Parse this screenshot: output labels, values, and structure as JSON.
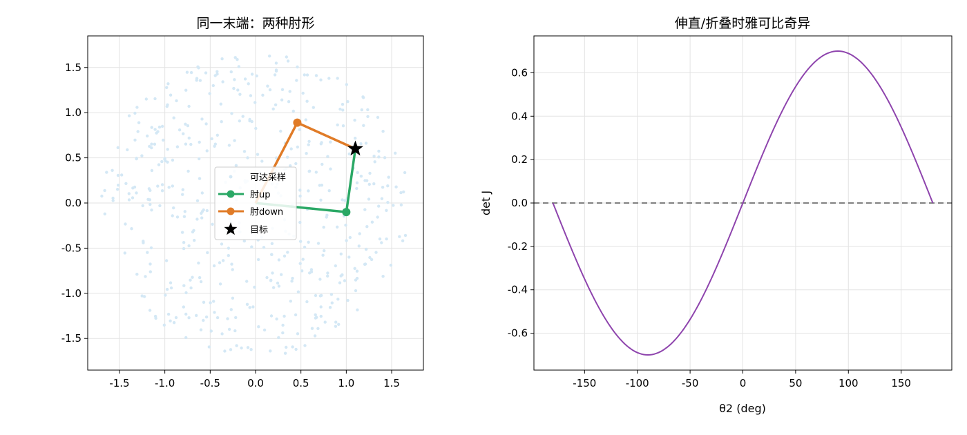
{
  "chart_data": [
    {
      "type": "scatter",
      "title": "同一末端：两种肘形",
      "xlim": [
        -1.85,
        1.85
      ],
      "ylim": [
        -1.85,
        1.85
      ],
      "xticks": [
        "-1.5",
        "-1.0",
        "-0.5",
        "0.0",
        "0.5",
        "1.0",
        "1.5"
      ],
      "yticks": [
        "-1.5",
        "-1.0",
        "-0.5",
        "0.0",
        "0.5",
        "1.0",
        "1.5"
      ],
      "grid": true,
      "legend_placement": "center",
      "colors": {
        "reachable": "#d4e8f5",
        "elbow_up": "#2aa865",
        "elbow_down": "#e07b27",
        "target": "#000000"
      },
      "series": [
        {
          "name": "可达采样",
          "type": "scatter",
          "description_count": 500,
          "r_min": 0.2,
          "r_max": 1.7
        },
        {
          "name": "肘up",
          "type": "line",
          "x": [
            0.0,
            1.0,
            1.1
          ],
          "y": [
            0.0,
            -0.1,
            0.6
          ]
        },
        {
          "name": "肘down",
          "type": "line",
          "x": [
            0.0,
            0.46,
            1.1
          ],
          "y": [
            0.0,
            0.89,
            0.6
          ]
        },
        {
          "name": "目标",
          "type": "marker",
          "x": [
            1.1
          ],
          "y": [
            0.6
          ]
        }
      ]
    },
    {
      "type": "line",
      "title": "伸直/折叠时雅可比奇异",
      "xlabel": "θ2 (deg)",
      "ylabel": "det J",
      "xlim": [
        -198,
        198
      ],
      "ylim": [
        -0.77,
        0.77
      ],
      "xticks": [
        "-150",
        "-100",
        "-50",
        "0",
        "50",
        "100",
        "150"
      ],
      "yticks": [
        "-0.6",
        "-0.4",
        "-0.2",
        "0.0",
        "0.2",
        "0.4",
        "0.6"
      ],
      "grid": true,
      "series": [
        {
          "type": "line",
          "function": "0.7*sin(theta2)",
          "x_range": [
            -180,
            180
          ],
          "color": "#8e44ad"
        },
        {
          "type": "hline",
          "y": 0.0,
          "style": "dashed",
          "color": "#808080"
        }
      ]
    }
  ]
}
